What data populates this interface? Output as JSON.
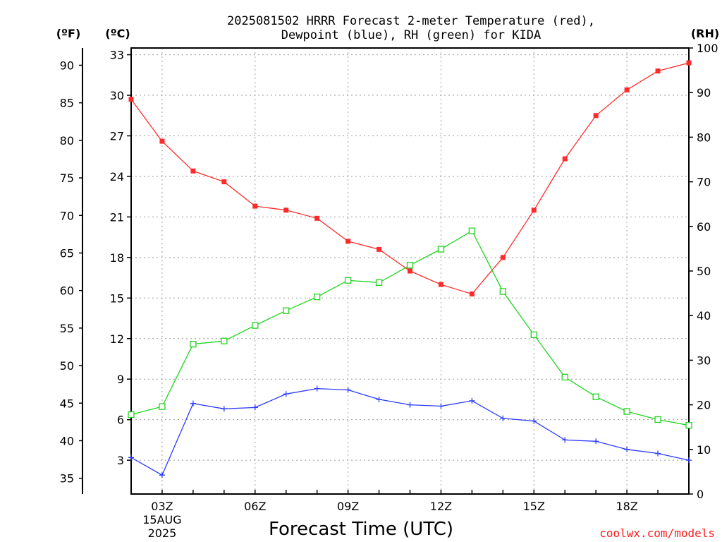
{
  "chart_data": {
    "type": "line",
    "title": "2025081502 HRRR Forecast 2-meter Temperature (red),",
    "subtitle": "Dewpoint (blue), RH (green) for KIDA",
    "xlabel": "Forecast Time (UTC)",
    "credit": "coolwx.com/models",
    "axis_units": {
      "fahrenheit": "(ºF)",
      "celsius": "(ºC)",
      "rh": "(RH)"
    },
    "x_hours": [
      2,
      3,
      4,
      5,
      6,
      7,
      8,
      9,
      10,
      11,
      12,
      13,
      14,
      15,
      16,
      17,
      18,
      19,
      20
    ],
    "xlim": [
      2,
      20
    ],
    "x_ticks": [
      {
        "hour": 3,
        "label": "03Z",
        "sub1": "15AUG",
        "sub2": "2025"
      },
      {
        "hour": 6,
        "label": "06Z"
      },
      {
        "hour": 9,
        "label": "09Z"
      },
      {
        "hour": 12,
        "label": "12Z"
      },
      {
        "hour": 15,
        "label": "15Z"
      },
      {
        "hour": 18,
        "label": "18Z"
      }
    ],
    "ylim_celsius": [
      0.5,
      33.5
    ],
    "y_ticks_celsius": [
      "33",
      "30",
      "27",
      "24",
      "21",
      "18",
      "15",
      "12",
      "9",
      "6",
      "3"
    ],
    "y_ticks_fahrenheit": [
      "90",
      "85",
      "80",
      "75",
      "70",
      "65",
      "60",
      "55",
      "50",
      "45",
      "40",
      "35"
    ],
    "ylim_rh": [
      0,
      100
    ],
    "y_ticks_rh": [
      "100",
      "90",
      "80",
      "70",
      "60",
      "50",
      "40",
      "30",
      "20",
      "10",
      "0"
    ],
    "grid": true,
    "series": [
      {
        "name": "Temperature",
        "unit": "C",
        "color": "#ff2b2b",
        "marker": "filled-square",
        "values": [
          29.7,
          26.6,
          24.4,
          23.6,
          21.8,
          21.5,
          20.9,
          19.2,
          18.6,
          17.0,
          16.0,
          15.3,
          18.0,
          21.5,
          25.3,
          28.5,
          30.4,
          31.8,
          32.4
        ]
      },
      {
        "name": "Dewpoint",
        "unit": "C",
        "color": "#2b3bff",
        "marker": "plus",
        "values": [
          3.2,
          1.9,
          7.2,
          6.8,
          6.9,
          7.9,
          8.3,
          8.2,
          7.5,
          7.1,
          7.0,
          7.4,
          6.1,
          5.9,
          4.5,
          4.4,
          3.8,
          3.5,
          3.0
        ]
      },
      {
        "name": "RH",
        "unit": "%",
        "color": "#1ed41e",
        "marker": "open-square",
        "values": [
          17.8,
          19.6,
          33.6,
          34.3,
          37.8,
          41.1,
          44.2,
          47.9,
          47.4,
          51.3,
          54.9,
          59.0,
          45.4,
          35.7,
          26.2,
          21.8,
          18.5,
          16.7,
          15.4
        ]
      }
    ]
  }
}
